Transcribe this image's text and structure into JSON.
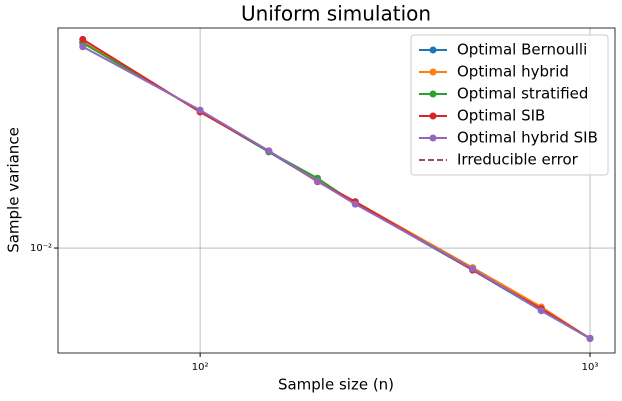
{
  "chart_data": {
    "type": "line",
    "title": "Uniform simulation",
    "x_label": "Sample size (n)",
    "y_label": "Sample variance",
    "x": [
      50,
      100,
      150,
      200,
      250,
      500,
      750,
      1000
    ],
    "series": [
      {
        "name": "Optimal Bernoulli",
        "color": "#1f77b4",
        "style": "solid-marker",
        "values": [
          0.0805,
          0.04,
          0.0265,
          0.0197,
          0.0157,
          0.008,
          0.0053,
          0.004
        ]
      },
      {
        "name": "Optimal hybrid",
        "color": "#ff7f0e",
        "style": "solid-marker",
        "values": [
          0.081,
          0.0398,
          0.0267,
          0.0198,
          0.016,
          0.0082,
          0.0055,
          0.004
        ]
      },
      {
        "name": "Optimal stratified",
        "color": "#2ca02c",
        "style": "solid-marker",
        "values": [
          0.08,
          0.04,
          0.0266,
          0.0203,
          0.0157,
          0.0081,
          0.0053,
          0.004
        ]
      },
      {
        "name": "Optimal SIB",
        "color": "#d62728",
        "style": "solid-marker",
        "values": [
          0.083,
          0.0397,
          0.0268,
          0.0196,
          0.016,
          0.008,
          0.0054,
          0.004
        ]
      },
      {
        "name": "Optimal hybrid SIB",
        "color": "#9467bd",
        "style": "solid-marker",
        "values": [
          0.077,
          0.0405,
          0.0268,
          0.0197,
          0.0156,
          0.0081,
          0.0053,
          0.004
        ]
      },
      {
        "name": "Irreducible error",
        "color": "#8c564b",
        "style": "dashed",
        "values": [
          null,
          null,
          null,
          null,
          null,
          null,
          null,
          null
        ]
      }
    ],
    "x_log": true,
    "y_log": true,
    "xlim": [
      43.2,
      1159
    ],
    "ylim": [
      0.00345,
      0.0931
    ],
    "xticks": [
      {
        "value": 100,
        "label": "10²"
      },
      {
        "value": 1000,
        "label": "10³"
      }
    ],
    "yticks": [
      {
        "value": 0.01,
        "label": "10⁻²"
      }
    ],
    "grid": true,
    "legend": "upper right"
  }
}
